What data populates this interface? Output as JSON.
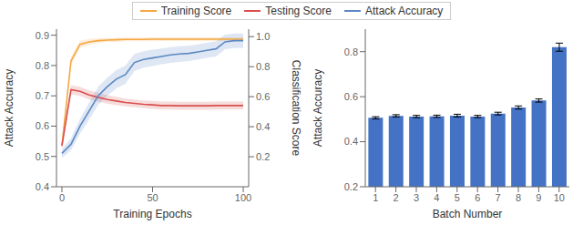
{
  "chart_data": [
    {
      "type": "line",
      "xlabel": "Training Epochs",
      "ylabel": "Attack Accuracy",
      "y2label": "Classification Score",
      "x": [
        0,
        5,
        10,
        15,
        20,
        25,
        30,
        35,
        40,
        45,
        50,
        55,
        60,
        65,
        70,
        75,
        80,
        85,
        90,
        95,
        100
      ],
      "xlim": [
        -3,
        103
      ],
      "xticks": [
        0,
        50,
        100
      ],
      "ylim": [
        0.4,
        0.92
      ],
      "yticks": [
        0.4,
        0.5,
        0.6,
        0.7,
        0.8,
        0.9
      ],
      "y2lim": [
        0.0,
        1.05
      ],
      "y2ticks": [
        0.2,
        0.4,
        0.6,
        0.8,
        {
          "value": 1.0,
          "label": "1.0"
        }
      ],
      "legend": "top",
      "series": [
        {
          "name": "Training Score",
          "color": "#f5a742",
          "values": [
            0.535,
            0.815,
            0.87,
            0.878,
            0.882,
            0.884,
            0.885,
            0.886,
            0.886,
            0.886,
            0.887,
            0.887,
            0.887,
            0.887,
            0.887,
            0.887,
            0.887,
            0.887,
            0.887,
            0.887,
            0.887
          ],
          "errors": [
            0.01,
            0.015,
            0.012,
            0.01,
            0.008,
            0.007,
            0.007,
            0.006,
            0.006,
            0.006,
            0.006,
            0.006,
            0.006,
            0.006,
            0.006,
            0.006,
            0.006,
            0.006,
            0.006,
            0.006,
            0.006
          ]
        },
        {
          "name": "Testing Score",
          "color": "#d94f4f",
          "values": [
            0.535,
            0.72,
            0.715,
            0.703,
            0.695,
            0.688,
            0.683,
            0.678,
            0.675,
            0.672,
            0.67,
            0.668,
            0.668,
            0.667,
            0.667,
            0.667,
            0.667,
            0.668,
            0.668,
            0.668,
            0.668
          ],
          "errors": [
            0.01,
            0.015,
            0.015,
            0.015,
            0.015,
            0.014,
            0.014,
            0.013,
            0.013,
            0.013,
            0.013,
            0.013,
            0.013,
            0.013,
            0.013,
            0.013,
            0.013,
            0.013,
            0.013,
            0.013,
            0.013
          ]
        },
        {
          "name": "Attack Accuracy",
          "color": "#5b88c4",
          "values": [
            0.51,
            0.54,
            0.6,
            0.65,
            0.7,
            0.73,
            0.755,
            0.77,
            0.81,
            0.82,
            0.825,
            0.83,
            0.835,
            0.838,
            0.84,
            0.845,
            0.85,
            0.855,
            0.878,
            0.882,
            0.882
          ],
          "errors": [
            0.015,
            0.02,
            0.025,
            0.028,
            0.03,
            0.03,
            0.03,
            0.03,
            0.028,
            0.027,
            0.027,
            0.026,
            0.026,
            0.026,
            0.025,
            0.025,
            0.025,
            0.025,
            0.024,
            0.024,
            0.024
          ]
        }
      ]
    },
    {
      "type": "bar",
      "xlabel": "Batch Number",
      "ylabel": "Attack Accuracy",
      "categories": [
        "1",
        "2",
        "3",
        "4",
        "5",
        "6",
        "7",
        "8",
        "9",
        "10"
      ],
      "values": [
        0.506,
        0.515,
        0.512,
        0.513,
        0.516,
        0.512,
        0.525,
        0.552,
        0.583,
        0.82
      ],
      "errors": [
        0.005,
        0.005,
        0.005,
        0.005,
        0.006,
        0.005,
        0.006,
        0.007,
        0.007,
        0.018
      ],
      "color": "#4472c4",
      "ylim": [
        0.2,
        0.9
      ],
      "yticks": [
        0.2,
        0.4,
        0.6,
        0.8
      ]
    }
  ]
}
